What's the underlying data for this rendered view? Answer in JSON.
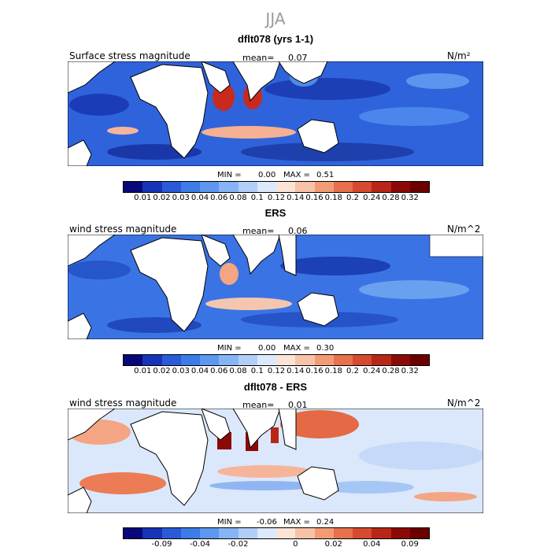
{
  "season": "JJA",
  "panels": [
    {
      "title": "dflt078 (yrs 1-1)",
      "label": "Surface stress magnitude",
      "mean_label": "mean=",
      "mean_value": "0.07",
      "units": "N/m²",
      "min_label": "MIN =",
      "min_value": "0.00",
      "max_label": "MAX =",
      "max_value": "0.51",
      "colorbar_ticks": [
        "0.01",
        "0.02",
        "0.03",
        "0.04",
        "0.06",
        "0.08",
        "0.1",
        "0.12",
        "0.14",
        "0.16",
        "0.18",
        "0.2",
        "0.24",
        "0.28",
        "0.32"
      ],
      "colorbar_colors": [
        "#08087a",
        "#1733b8",
        "#2a5ad8",
        "#3d7be8",
        "#5d97ef",
        "#86b4f4",
        "#b0cef8",
        "#dce9fb",
        "#fbe4d6",
        "#f7c3a6",
        "#f29c76",
        "#e8704d",
        "#d64a2f",
        "#b82617",
        "#8b0a08",
        "#6a0000"
      ]
    },
    {
      "title": "ERS",
      "label": "wind stress magnitude",
      "mean_label": "mean=",
      "mean_value": "0.06",
      "units": "N/m^2",
      "min_label": "MIN =",
      "min_value": "0.00",
      "max_label": "MAX =",
      "max_value": "0.30",
      "colorbar_ticks": [
        "0.01",
        "0.02",
        "0.03",
        "0.04",
        "0.06",
        "0.08",
        "0.1",
        "0.12",
        "0.14",
        "0.16",
        "0.18",
        "0.2",
        "0.24",
        "0.28",
        "0.32"
      ],
      "colorbar_colors": [
        "#08087a",
        "#1733b8",
        "#2a5ad8",
        "#3d7be8",
        "#5d97ef",
        "#86b4f4",
        "#b0cef8",
        "#dce9fb",
        "#fbe4d6",
        "#f7c3a6",
        "#f29c76",
        "#e8704d",
        "#d64a2f",
        "#b82617",
        "#8b0a08",
        "#6a0000"
      ]
    },
    {
      "title": "dflt078 - ERS",
      "label": "wind stress magnitude",
      "mean_label": "mean=",
      "mean_value": "0.01",
      "units": "N/m^2",
      "min_label": "MIN =",
      "min_value": "-0.06",
      "max_label": "MAX =",
      "max_value": "0.24",
      "colorbar_ticks": [
        "",
        "-0.09",
        "",
        "-0.04",
        "",
        "-0.02",
        "",
        "",
        "0",
        "",
        "0.02",
        "",
        "0.04",
        "",
        "0.09"
      ],
      "colorbar_colors": [
        "#08087a",
        "#1733b8",
        "#2a5ad8",
        "#3d7be8",
        "#5d97ef",
        "#86b4f4",
        "#b0cef8",
        "#dce9fb",
        "#fbe4d6",
        "#f7c3a6",
        "#f29c76",
        "#e8704d",
        "#d64a2f",
        "#b82617",
        "#8b0a08",
        "#6a0000"
      ]
    }
  ]
}
